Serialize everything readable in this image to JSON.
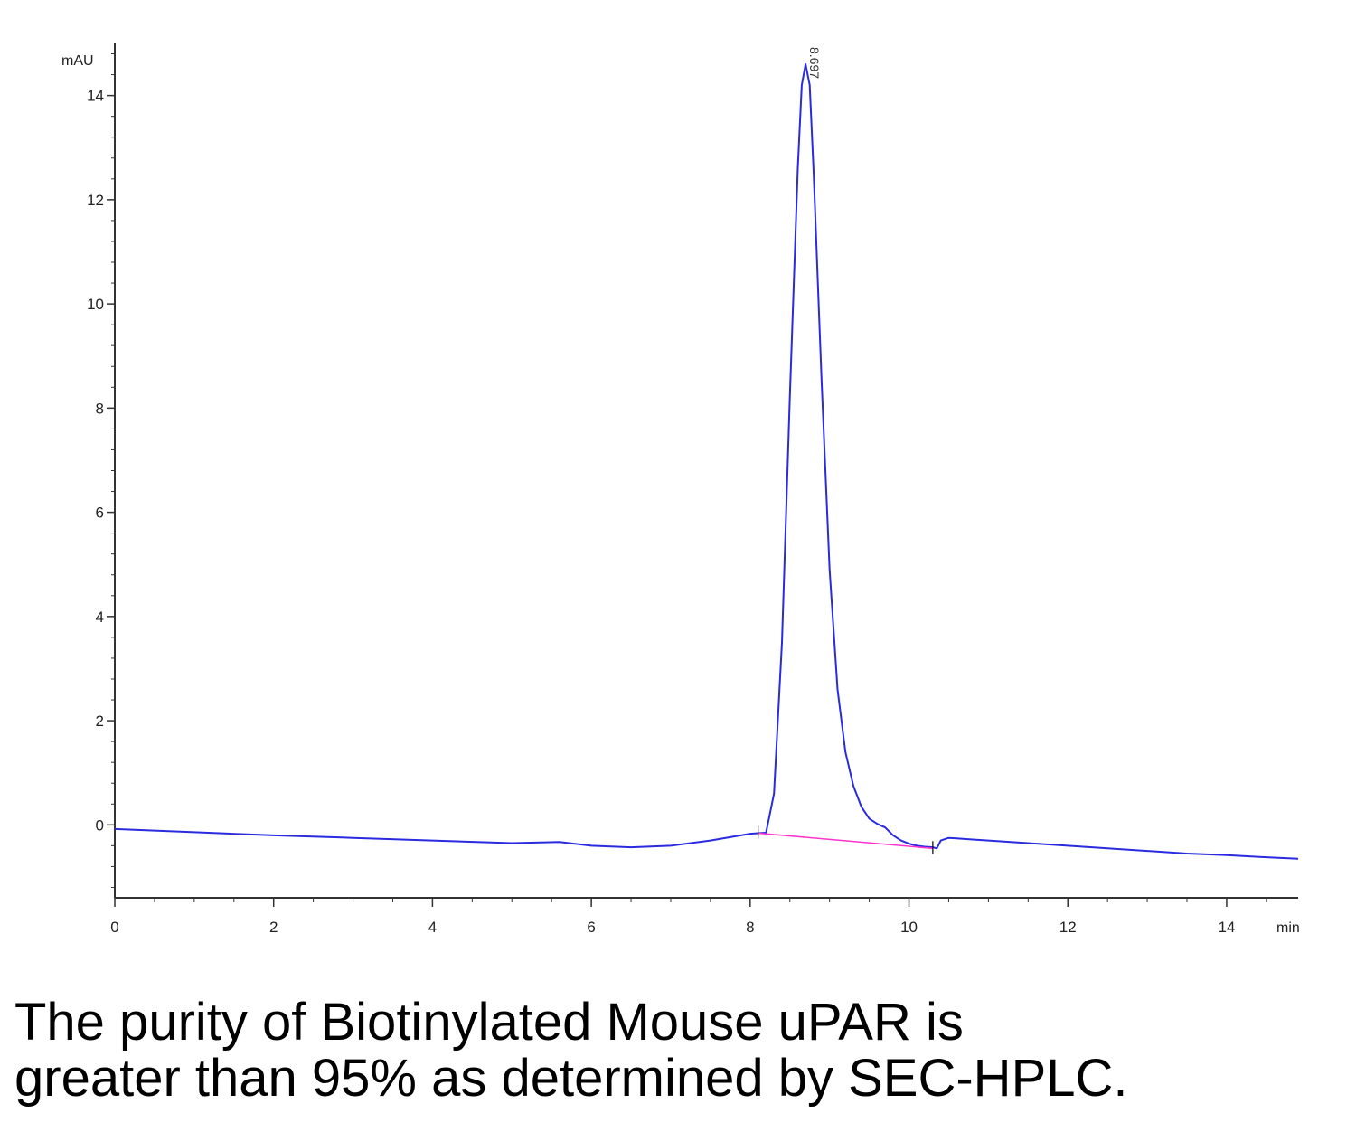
{
  "chart_data": {
    "type": "line",
    "title": "",
    "xlabel": "min",
    "ylabel": "mAU",
    "xlim": [
      0,
      14.9
    ],
    "ylim": [
      -1.4,
      15
    ],
    "x_ticks": [
      0,
      2,
      4,
      6,
      8,
      10,
      12,
      14
    ],
    "y_ticks": [
      0,
      2,
      4,
      6,
      8,
      10,
      12,
      14
    ],
    "x_tick_labels": [
      "0",
      "2",
      "4",
      "6",
      "8",
      "10",
      "12",
      "14"
    ],
    "y_tick_labels": [
      "0",
      "2",
      "4",
      "6",
      "8",
      "10",
      "12",
      "14"
    ],
    "grid": false,
    "series": [
      {
        "color": "#2a2ae0",
        "x": [
          0,
          1,
          2,
          3,
          4,
          5,
          5.6,
          6,
          6.5,
          7,
          7.5,
          8,
          8.1,
          8.2,
          8.3,
          8.4,
          8.5,
          8.6,
          8.65,
          8.697,
          8.75,
          8.8,
          8.9,
          9.0,
          9.1,
          9.2,
          9.3,
          9.4,
          9.5,
          9.6,
          9.7,
          9.8,
          9.9,
          10.0,
          10.1,
          10.2,
          10.3,
          10.35,
          10.4,
          10.5,
          10.6,
          10.8,
          11.0,
          11.5,
          12,
          12.5,
          13,
          13.5,
          14,
          14.5,
          14.9
        ],
        "y": [
          -0.08,
          -0.14,
          -0.2,
          -0.25,
          -0.3,
          -0.35,
          -0.33,
          -0.4,
          -0.43,
          -0.4,
          -0.3,
          -0.17,
          -0.16,
          -0.15,
          0.6,
          3.5,
          8.2,
          12.6,
          14.2,
          14.6,
          14.2,
          12.5,
          8.5,
          4.9,
          2.6,
          1.4,
          0.75,
          0.35,
          0.12,
          0.02,
          -0.05,
          -0.2,
          -0.3,
          -0.36,
          -0.4,
          -0.42,
          -0.43,
          -0.45,
          -0.3,
          -0.25,
          -0.26,
          -0.28,
          -0.3,
          -0.35,
          -0.4,
          -0.45,
          -0.5,
          -0.55,
          -0.58,
          -0.62,
          -0.65
        ]
      },
      {
        "color": "#ff33cc",
        "x": [
          8.1,
          10.3
        ],
        "y": [
          -0.16,
          -0.45
        ]
      }
    ],
    "annotations": [
      {
        "text": "8.697",
        "x": 8.697,
        "y": 14.6
      }
    ]
  },
  "caption": {
    "line1": "The purity of Biotinylated Mouse uPAR is",
    "line2": "greater than 95% as determined by SEC-HPLC."
  }
}
